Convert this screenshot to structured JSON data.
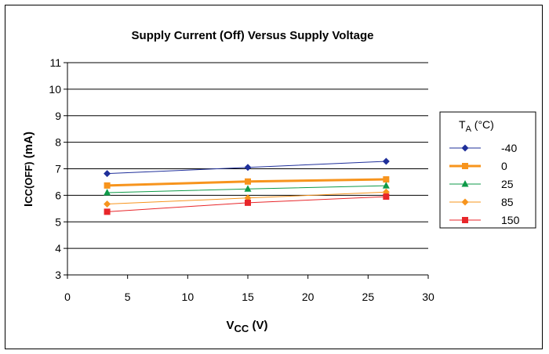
{
  "chart_data": {
    "type": "line",
    "title": "Supply Current (Off) Versus Supply Voltage",
    "xlabel": {
      "main": "V",
      "sub": "CC",
      "unit": " (V)"
    },
    "ylabel": {
      "main": "I",
      "sub": "CC(OFF)",
      "unit": " (mA)"
    },
    "xlim": [
      0,
      30
    ],
    "ylim": [
      3,
      11
    ],
    "xticks": [
      0,
      5,
      10,
      15,
      20,
      25,
      30
    ],
    "yticks": [
      3,
      4,
      5,
      6,
      7,
      8,
      9,
      10,
      11
    ],
    "grid": "horizontal",
    "legend": {
      "placement": "right",
      "title_main": "T",
      "title_sub": "A",
      "title_unit": " (°C)"
    },
    "x": [
      3.3,
      15,
      26.5
    ],
    "series": [
      {
        "name": "-40",
        "values": [
          6.82,
          7.05,
          7.28
        ],
        "color": "#1f2f9a",
        "marker": "diamond",
        "width": 1
      },
      {
        "name": "0",
        "values": [
          6.37,
          6.52,
          6.6
        ],
        "color": "#f7941d",
        "marker": "square",
        "width": 3
      },
      {
        "name": "25",
        "values": [
          6.1,
          6.24,
          6.36
        ],
        "color": "#0e9a48",
        "marker": "triangle",
        "width": 1
      },
      {
        "name": "85",
        "values": [
          5.67,
          5.9,
          6.12
        ],
        "color": "#f7941d",
        "marker": "diamond",
        "width": 1
      },
      {
        "name": "150",
        "values": [
          5.38,
          5.72,
          5.95
        ],
        "color": "#e8262a",
        "marker": "square",
        "width": 1
      }
    ]
  }
}
